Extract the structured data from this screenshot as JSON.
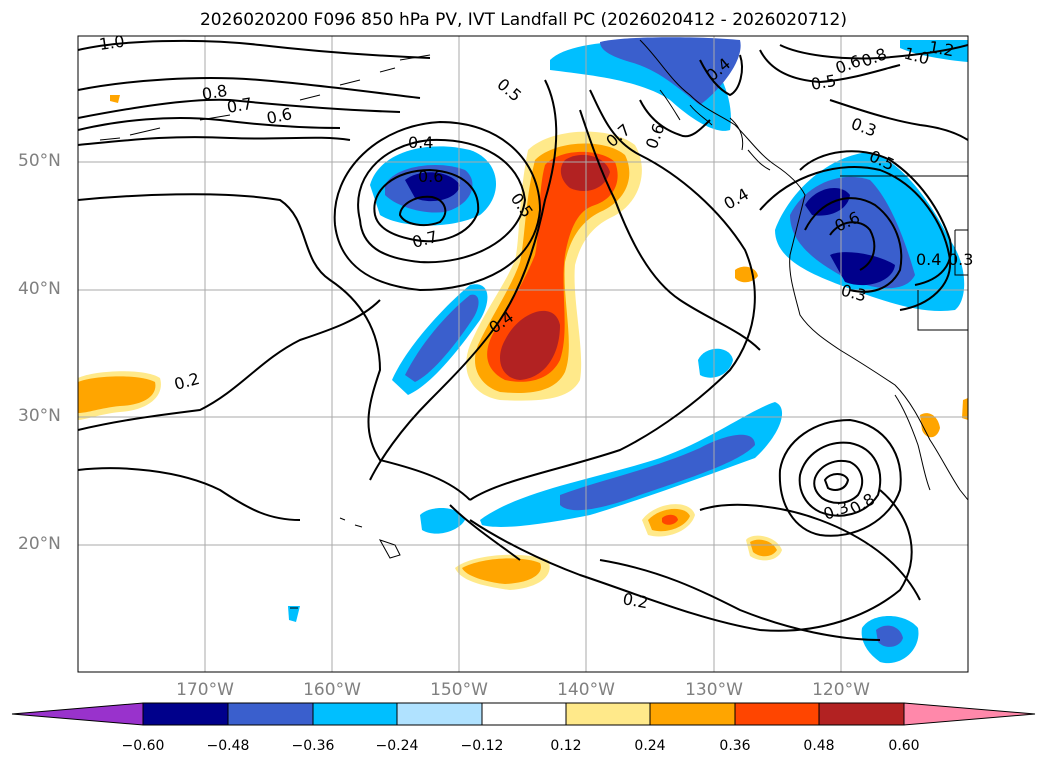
{
  "title": "2026020200 F096 850 hPa PV, IVT Landfall PC (2026020412 - 2026020712)",
  "lat_labels": [
    "50°N",
    "40°N",
    "30°N",
    "20°N"
  ],
  "lon_labels": [
    "170°W",
    "160°W",
    "150°W",
    "140°W",
    "130°W",
    "120°W"
  ],
  "contour_labels": [
    "1.0",
    "0.8",
    "0.7",
    "0.6",
    "0.5",
    "0.4",
    "0.6",
    "0.7",
    "0.5",
    "0.7",
    "0.6",
    "0.4",
    "0.8",
    "0.6",
    "0.5",
    "0.3",
    "0.5",
    "0.6",
    "0.4",
    "0.3",
    "0.4",
    "0.3",
    "0.2",
    "0.4",
    "0.3",
    "0.2",
    "0.8",
    "1.0",
    "1.2"
  ],
  "colorbar": {
    "ticks": [
      "−0.60",
      "−0.48",
      "−0.36",
      "−0.24",
      "−0.12",
      "0.12",
      "0.24",
      "0.36",
      "0.48",
      "0.60"
    ],
    "colors": [
      "#9932cc",
      "#00008b",
      "#3a5fcd",
      "#00bfff",
      "#b0e2ff",
      "#ffffff",
      "#ffe98a",
      "#ffa500",
      "#ff4500",
      "#b22222",
      "#ff88aa"
    ]
  }
}
